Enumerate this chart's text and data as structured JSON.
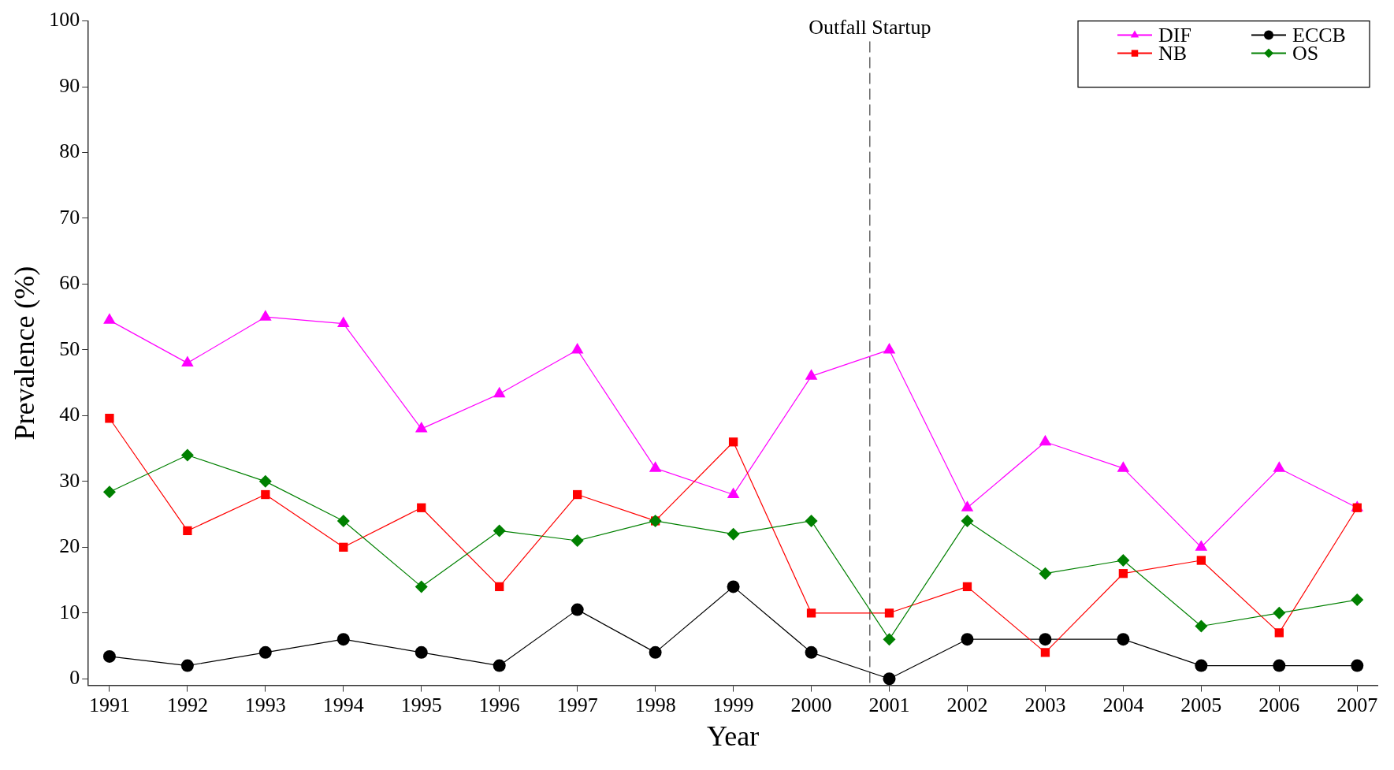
{
  "chart_data": {
    "type": "line",
    "xlabel": "Year",
    "ylabel": "Prevalence (%)",
    "x": [
      1991,
      1992,
      1993,
      1994,
      1995,
      1996,
      1997,
      1998,
      1999,
      2000,
      2001,
      2002,
      2003,
      2004,
      2005,
      2006,
      2007
    ],
    "xlim": [
      1990.73,
      2007.26
    ],
    "xticks": [
      1991,
      1992,
      1993,
      1994,
      1995,
      1996,
      1997,
      1998,
      1999,
      2000,
      2001,
      2002,
      2003,
      2004,
      2005,
      2006,
      2007
    ],
    "ylim": [
      -1,
      100
    ],
    "yticks": [
      0,
      10,
      20,
      30,
      40,
      50,
      60,
      70,
      80,
      90,
      100
    ],
    "grid": false,
    "legend": "top right",
    "line_style": "solid",
    "series": [
      {
        "name": "DIF",
        "color": "#ff00ff",
        "marker": "triangle",
        "values": [
          54.5,
          48,
          55,
          54,
          38,
          43.3,
          50,
          32,
          28,
          46,
          50,
          26,
          36,
          32,
          20,
          32,
          26
        ]
      },
      {
        "name": "ECCB",
        "color": "#000000",
        "marker": "circle",
        "values": [
          3.4,
          2,
          4,
          6,
          4,
          2,
          10.5,
          4,
          14,
          4,
          0,
          6,
          6,
          6,
          2,
          2,
          2
        ]
      },
      {
        "name": "NB",
        "color": "#ff0000",
        "marker": "square",
        "values": [
          39.6,
          22.5,
          28,
          20,
          26,
          14,
          28,
          24,
          36,
          10,
          10,
          14,
          4,
          16,
          18,
          7,
          26
        ]
      },
      {
        "name": "OS",
        "color": "#008000",
        "marker": "diamond",
        "values": [
          28.4,
          34,
          30,
          24,
          14,
          22.5,
          21,
          24,
          22,
          24,
          6,
          24,
          16,
          18,
          8,
          10,
          12
        ]
      }
    ],
    "ref_lines": [
      {
        "axis": "x",
        "value": 2000.75,
        "label": "Outfall Startup",
        "color": "#666666",
        "line_style": "dashed"
      }
    ]
  }
}
